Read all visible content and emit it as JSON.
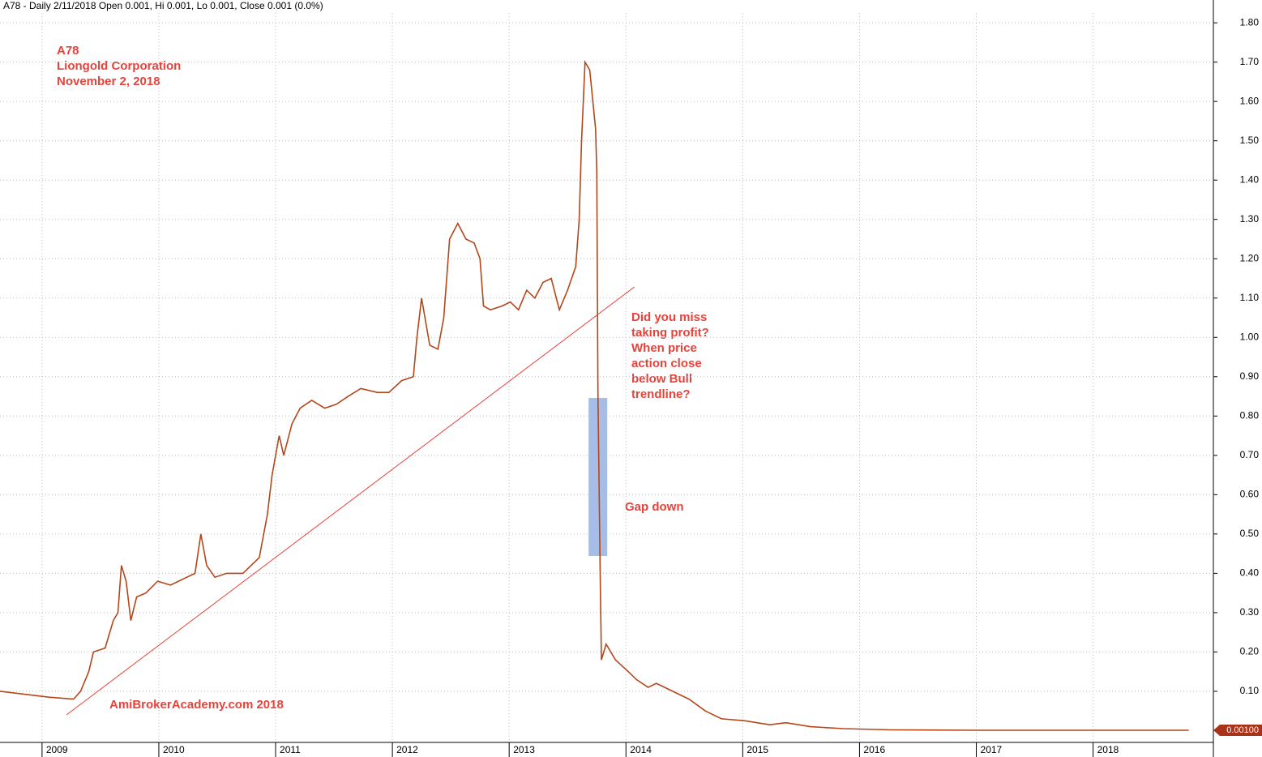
{
  "chart_data": {
    "type": "line",
    "title": "A78 - Daily 2/11/2018 Open 0.001, Hi 0.001, Lo 0.001, Close 0.001 (0.0%)",
    "annotations": {
      "company": [
        "A78",
        "Liongold Corporation",
        "November 2, 2018"
      ],
      "watermark": "AmiBrokerAcademy.com  2018",
      "question": [
        "Did you miss",
        "taking profit?",
        "When price",
        "action close",
        "below Bull",
        "trendline?"
      ],
      "gap": "Gap down"
    },
    "x": [
      2008.64,
      2009.06,
      2009.27,
      2009.33,
      2009.4,
      2009.44,
      2009.54,
      2009.61,
      2009.65,
      2009.68,
      2009.72,
      2009.76,
      2009.81,
      2009.89,
      2009.99,
      2010.1,
      2010.24,
      2010.31,
      2010.36,
      2010.41,
      2010.48,
      2010.58,
      2010.72,
      2010.86,
      2010.93,
      2010.97,
      2011.03,
      2011.07,
      2011.14,
      2011.21,
      2011.31,
      2011.42,
      2011.52,
      2011.62,
      2011.73,
      2011.87,
      2011.97,
      2012.08,
      2012.18,
      2012.21,
      2012.25,
      2012.32,
      2012.39,
      2012.44,
      2012.49,
      2012.56,
      2012.63,
      2012.7,
      2012.75,
      2012.78,
      2012.84,
      2012.94,
      2013.01,
      2013.08,
      2013.15,
      2013.22,
      2013.29,
      2013.36,
      2013.43,
      2013.5,
      2013.57,
      2013.6,
      2013.62,
      2013.65,
      2013.69,
      2013.74,
      2013.75,
      2013.76,
      2013.78,
      2013.79,
      2013.83,
      2013.91,
      2014.02,
      2014.09,
      2014.19,
      2014.26,
      2014.4,
      2014.54,
      2014.68,
      2014.82,
      2015.02,
      2015.23,
      2015.37,
      2015.58,
      2015.86,
      2016.27,
      2016.97,
      2017.66,
      2018.36,
      2018.82
    ],
    "series": [
      {
        "name": "A78",
        "color": "#b5461a",
        "values": [
          0.1,
          0.085,
          0.08,
          0.1,
          0.15,
          0.2,
          0.21,
          0.28,
          0.3,
          0.42,
          0.38,
          0.28,
          0.34,
          0.35,
          0.38,
          0.37,
          0.39,
          0.4,
          0.5,
          0.42,
          0.39,
          0.4,
          0.4,
          0.44,
          0.55,
          0.65,
          0.75,
          0.7,
          0.78,
          0.82,
          0.84,
          0.82,
          0.83,
          0.85,
          0.87,
          0.86,
          0.86,
          0.89,
          0.9,
          1.0,
          1.1,
          0.98,
          0.97,
          1.05,
          1.25,
          1.29,
          1.25,
          1.24,
          1.2,
          1.08,
          1.07,
          1.08,
          1.09,
          1.07,
          1.12,
          1.1,
          1.14,
          1.15,
          1.07,
          1.12,
          1.18,
          1.3,
          1.5,
          1.7,
          1.68,
          1.53,
          1.42,
          0.86,
          0.38,
          0.18,
          0.22,
          0.18,
          0.15,
          0.13,
          0.11,
          0.12,
          0.1,
          0.08,
          0.05,
          0.03,
          0.025,
          0.015,
          0.02,
          0.01,
          0.005,
          0.002,
          0.001,
          0.001,
          0.001,
          0.001
        ]
      }
    ],
    "trendline": {
      "color": "#e8423b",
      "x": [
        2009.21,
        2014.07
      ],
      "values": [
        0.04,
        1.128
      ]
    },
    "gap_box": {
      "color": "#a6bde6",
      "x": [
        2013.68,
        2013.84
      ],
      "values": [
        0.444,
        0.846
      ]
    },
    "last_price": {
      "value": 0.001,
      "label": "0.00100"
    },
    "xlim": [
      2008.64,
      2019.03
    ],
    "xticks": [
      2009,
      2010,
      2011,
      2012,
      2013,
      2014,
      2015,
      2016,
      2017,
      2018
    ],
    "ylim": [
      -0.03,
      1.858
    ],
    "yticks": [
      {
        "value": 0.1,
        "label": "0.10"
      },
      {
        "value": 0.2,
        "label": "0.20"
      },
      {
        "value": 0.3,
        "label": "0.30"
      },
      {
        "value": 0.4,
        "label": "0.40"
      },
      {
        "value": 0.5,
        "label": "0.50"
      },
      {
        "value": 0.6,
        "label": "0.60"
      },
      {
        "value": 0.7,
        "label": "0.70"
      },
      {
        "value": 0.8,
        "label": "0.80"
      },
      {
        "value": 0.9,
        "label": "0.90"
      },
      {
        "value": 1.0,
        "label": "1.00"
      },
      {
        "value": 1.1,
        "label": "1.10"
      },
      {
        "value": 1.2,
        "label": "1.20"
      },
      {
        "value": 1.3,
        "label": "1.30"
      },
      {
        "value": 1.4,
        "label": "1.40"
      },
      {
        "value": 1.5,
        "label": "1.50"
      },
      {
        "value": 1.6,
        "label": "1.60"
      },
      {
        "value": 1.7,
        "label": "1.70"
      },
      {
        "value": 1.8,
        "label": "1.80"
      }
    ],
    "grid": true
  }
}
